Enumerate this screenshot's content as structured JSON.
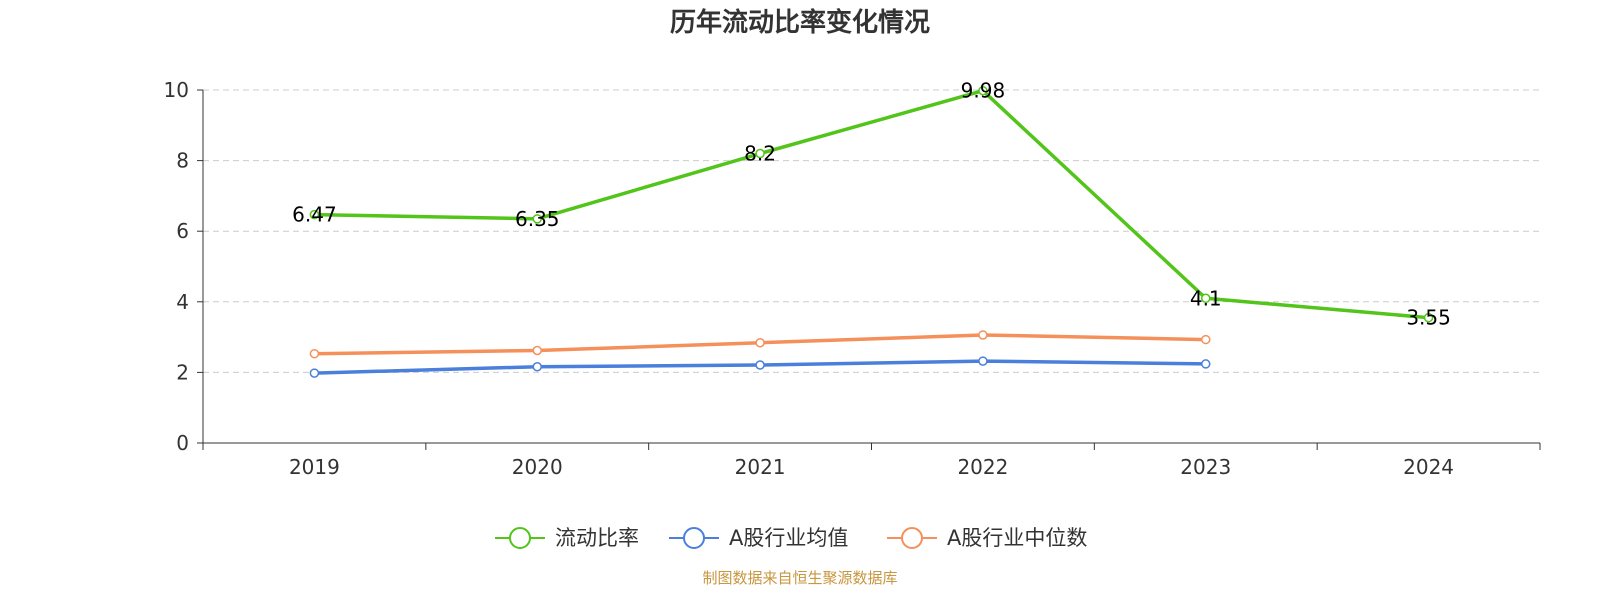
{
  "chart_data": {
    "type": "line",
    "title": "历年流动比率变化情况",
    "categories": [
      "2019",
      "2020",
      "2021",
      "2022",
      "2023",
      "2024"
    ],
    "ylim": [
      0,
      10
    ],
    "yticks": [
      0,
      2,
      4,
      6,
      8,
      10
    ],
    "grid": true,
    "legend_position": "bottom-center",
    "series": [
      {
        "name": "流动比率",
        "color": "#52c41a",
        "values": [
          6.47,
          6.35,
          8.2,
          9.98,
          4.1,
          3.55
        ],
        "labels": [
          "6.47",
          "6.35",
          "8.2",
          "9.98",
          "4.1",
          "3.55"
        ],
        "show_labels": true
      },
      {
        "name": "A股行业均值",
        "color": "#4a7fdb",
        "values": [
          1.98,
          2.16,
          2.21,
          2.32,
          2.24,
          null
        ],
        "show_labels": false
      },
      {
        "name": "A股行业中位数",
        "color": "#f5905a",
        "values": [
          2.53,
          2.62,
          2.84,
          3.06,
          2.93,
          null
        ],
        "show_labels": false
      }
    ]
  },
  "source_text": "制图数据来自恒生聚源数据库",
  "colors": {
    "axis": "#333333",
    "grid": "#cccccc",
    "source": "#c8963e"
  }
}
